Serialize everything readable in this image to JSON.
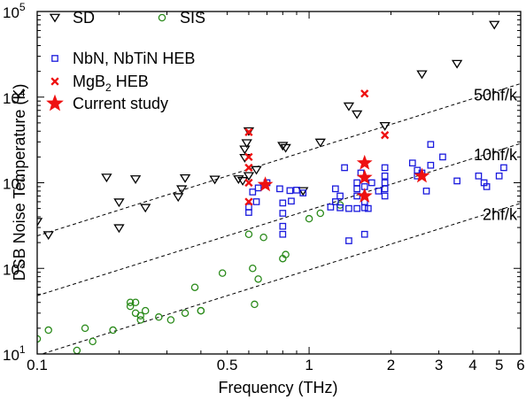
{
  "chart_data": {
    "type": "scatter",
    "xlabel": "Frequency (THz)",
    "ylabel": "DSB Noise Temperature (K)",
    "x_scale": "log",
    "y_scale": "log",
    "xlim": [
      0.1,
      6
    ],
    "ylim": [
      10,
      100000
    ],
    "x_ticks": [
      {
        "value": 0.1,
        "label": "0.1"
      },
      {
        "value": 0.5,
        "label": "0.5"
      },
      {
        "value": 1,
        "label": "1"
      },
      {
        "value": 2,
        "label": "2"
      },
      {
        "value": 3,
        "label": "3"
      },
      {
        "value": 4,
        "label": "4"
      },
      {
        "value": 5,
        "label": "5"
      },
      {
        "value": 6,
        "label": "6"
      }
    ],
    "y_ticks": [
      {
        "value": 10,
        "base": "10",
        "exp": "1"
      },
      {
        "value": 100,
        "base": "10",
        "exp": "2"
      },
      {
        "value": 1000,
        "base": "10",
        "exp": "3"
      },
      {
        "value": 10000,
        "base": "10",
        "exp": "4"
      },
      {
        "value": 100000,
        "base": "10",
        "exp": "5"
      }
    ],
    "legend_position": "top-left",
    "series": [
      {
        "name": "SD",
        "marker": "triangle-down",
        "color": "#000000",
        "points": [
          [
            0.1,
            350
          ],
          [
            0.11,
            245
          ],
          [
            0.18,
            1150
          ],
          [
            0.2,
            590
          ],
          [
            0.2,
            295
          ],
          [
            0.23,
            1100
          ],
          [
            0.25,
            510
          ],
          [
            0.33,
            680
          ],
          [
            0.34,
            840
          ],
          [
            0.35,
            1130
          ],
          [
            0.45,
            1090
          ],
          [
            0.55,
            1100
          ],
          [
            0.57,
            1050
          ],
          [
            0.58,
            1950
          ],
          [
            0.58,
            2450
          ],
          [
            0.59,
            2900
          ],
          [
            0.6,
            4000
          ],
          [
            0.6,
            1200
          ],
          [
            0.64,
            1410
          ],
          [
            0.8,
            2700
          ],
          [
            0.82,
            2550
          ],
          [
            0.95,
            800
          ],
          [
            1.1,
            2950
          ],
          [
            1.4,
            7800
          ],
          [
            1.5,
            6300
          ],
          [
            1.9,
            4600
          ],
          [
            2.6,
            18500
          ],
          [
            3.5,
            24500
          ],
          [
            4.8,
            70000
          ]
        ]
      },
      {
        "name": "SIS",
        "marker": "circle",
        "color": "#2a8a1a",
        "points": [
          [
            0.1,
            15
          ],
          [
            0.11,
            19
          ],
          [
            0.14,
            11
          ],
          [
            0.15,
            20
          ],
          [
            0.16,
            14
          ],
          [
            0.19,
            19
          ],
          [
            0.22,
            40
          ],
          [
            0.22,
            36
          ],
          [
            0.23,
            40
          ],
          [
            0.23,
            30
          ],
          [
            0.24,
            25
          ],
          [
            0.24,
            28
          ],
          [
            0.25,
            32
          ],
          [
            0.28,
            27
          ],
          [
            0.31,
            25
          ],
          [
            0.35,
            30
          ],
          [
            0.38,
            60
          ],
          [
            0.4,
            32
          ],
          [
            0.4,
            32
          ],
          [
            0.48,
            88
          ],
          [
            0.6,
            250
          ],
          [
            0.62,
            100
          ],
          [
            0.63,
            38
          ],
          [
            0.65,
            75
          ],
          [
            0.68,
            230
          ],
          [
            0.8,
            130
          ],
          [
            0.82,
            145
          ],
          [
            1.0,
            380
          ],
          [
            1.1,
            440
          ],
          [
            1.3,
            550
          ]
        ]
      },
      {
        "name": "NbN, NbTiN HEB",
        "marker": "square",
        "color": "#1a1add",
        "points": [
          [
            0.6,
            450
          ],
          [
            0.6,
            520
          ],
          [
            0.62,
            780
          ],
          [
            0.64,
            600
          ],
          [
            0.65,
            870
          ],
          [
            0.7,
            1000
          ],
          [
            0.78,
            850
          ],
          [
            0.8,
            580
          ],
          [
            0.8,
            440
          ],
          [
            0.8,
            310
          ],
          [
            0.8,
            250
          ],
          [
            0.85,
            810
          ],
          [
            0.86,
            610
          ],
          [
            0.9,
            820
          ],
          [
            0.95,
            760
          ],
          [
            1.2,
            520
          ],
          [
            1.25,
            850
          ],
          [
            1.25,
            600
          ],
          [
            1.3,
            510
          ],
          [
            1.3,
            700
          ],
          [
            1.35,
            1500
          ],
          [
            1.4,
            500
          ],
          [
            1.4,
            210
          ],
          [
            1.5,
            1000
          ],
          [
            1.5,
            850
          ],
          [
            1.5,
            700
          ],
          [
            1.5,
            500
          ],
          [
            1.55,
            1300
          ],
          [
            1.6,
            900
          ],
          [
            1.6,
            600
          ],
          [
            1.6,
            510
          ],
          [
            1.6,
            250
          ],
          [
            1.65,
            500
          ],
          [
            1.7,
            1000
          ],
          [
            1.8,
            800
          ],
          [
            1.9,
            1500
          ],
          [
            1.9,
            1200
          ],
          [
            1.9,
            1000
          ],
          [
            1.9,
            850
          ],
          [
            1.9,
            700
          ],
          [
            2.4,
            1700
          ],
          [
            2.5,
            1400
          ],
          [
            2.5,
            1200
          ],
          [
            2.6,
            1300
          ],
          [
            2.7,
            800
          ],
          [
            2.8,
            2800
          ],
          [
            2.8,
            1600
          ],
          [
            3.1,
            2000
          ],
          [
            3.5,
            1050
          ],
          [
            4.2,
            1200
          ],
          [
            4.4,
            1000
          ],
          [
            4.5,
            900
          ],
          [
            5.0,
            1200
          ],
          [
            5.2,
            1500
          ]
        ]
      },
      {
        "name": "MgB2 HEB",
        "name_label": {
          "main": "MgB",
          "sub": "2",
          "tail": " HEB"
        },
        "marker": "x",
        "color": "#ee1111",
        "points": [
          [
            0.6,
            3900
          ],
          [
            0.6,
            2000
          ],
          [
            0.6,
            1500
          ],
          [
            0.6,
            1000
          ],
          [
            0.6,
            600
          ],
          [
            1.6,
            11000
          ],
          [
            1.9,
            3600
          ]
        ]
      },
      {
        "name": "Current study",
        "marker": "star",
        "color": "#ee1111",
        "points": [
          [
            0.69,
            950
          ],
          [
            1.6,
            1700
          ],
          [
            1.6,
            1150
          ],
          [
            1.6,
            700
          ],
          [
            2.6,
            1200
          ]
        ]
      }
    ],
    "reference_lines": [
      {
        "label": "50hf/k",
        "factor": 50
      },
      {
        "label": "10hf/k",
        "factor": 10
      },
      {
        "label": "2hf/k",
        "factor": 2
      }
    ],
    "reference_line_slope_K_per_THz": 48
  }
}
